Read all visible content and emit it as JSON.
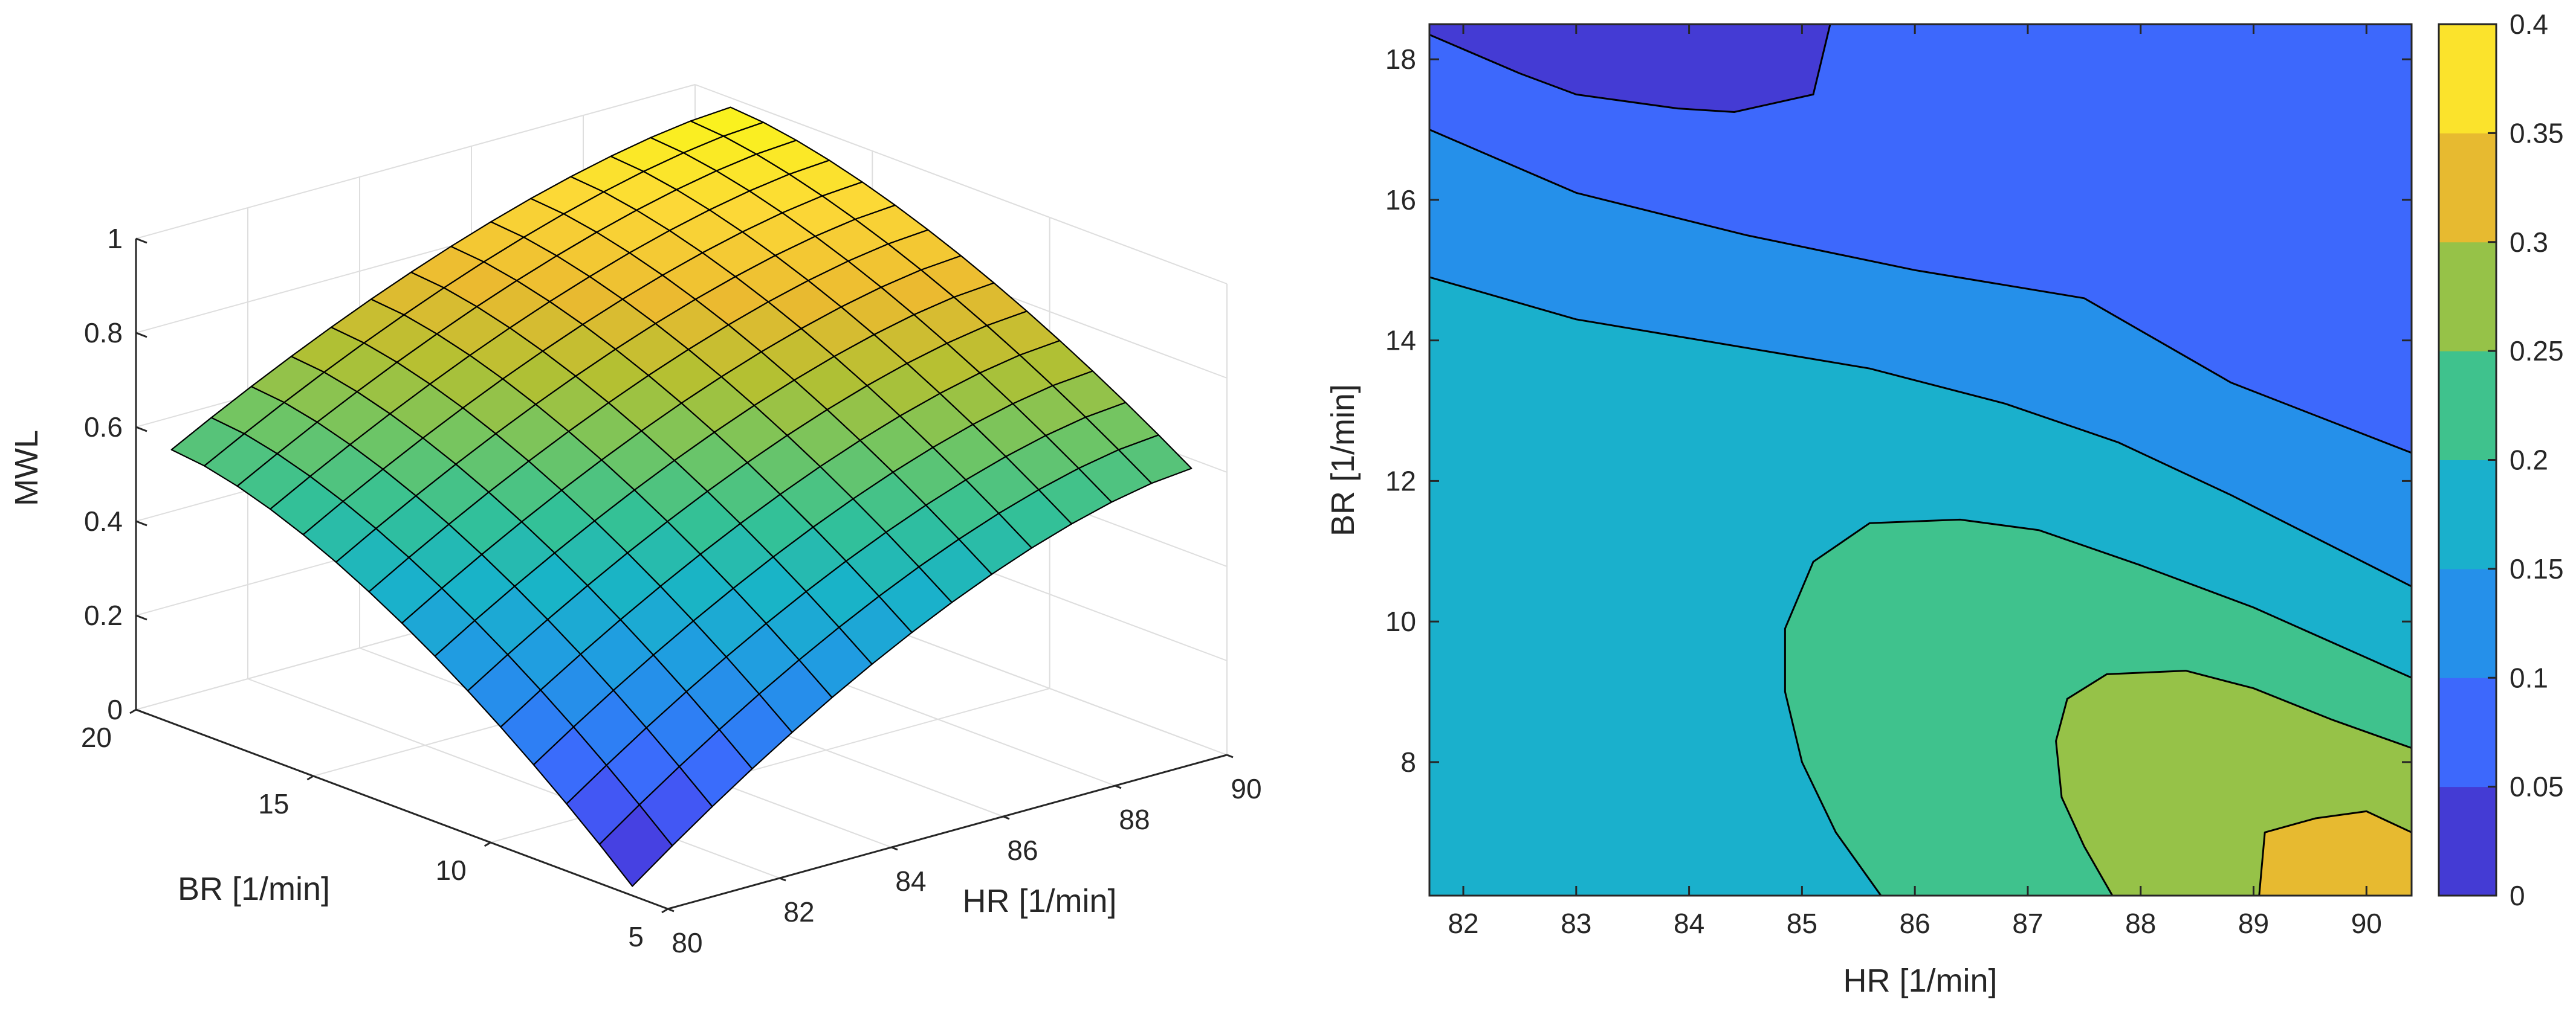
{
  "colors": {
    "axis": "#262626",
    "grid": "#dedede",
    "edge": "#000000",
    "background": "#ffffff"
  },
  "colormap": [
    "#3e26a8",
    "#4744e8",
    "#3e66fd",
    "#2a85f2",
    "#1f9fdf",
    "#19b4c7",
    "#34c196",
    "#70c564",
    "#b3c032",
    "#ebba30",
    "#fcd837",
    "#f9fb15"
  ],
  "chart_data": [
    {
      "type": "surface",
      "xlabel": "HR [1/min]",
      "ylabel": "BR [1/min]",
      "zlabel": "MWL",
      "xlim": [
        80,
        90
      ],
      "ylim": [
        5,
        20
      ],
      "zlim": [
        0,
        1
      ],
      "xticks": [
        "80",
        "82",
        "84",
        "86",
        "88",
        "90"
      ],
      "yticks": [
        "5",
        "10",
        "15",
        "20"
      ],
      "zticks": [
        "0",
        "0.2",
        "0.4",
        "0.6",
        "0.8",
        "1"
      ],
      "hr_range": [
        80,
        90
      ],
      "br_range": [
        6,
        19
      ],
      "grid_size": [
        15,
        15
      ],
      "corner_values": {
        "hr80_br6": 0.02,
        "hr90_br6": 0.58,
        "hr80_br19": 0.58,
        "hr90_br19": 0.98
      }
    },
    {
      "type": "contour",
      "xlabel": "HR [1/min]",
      "ylabel": "BR [1/min]",
      "xlim": [
        81.7,
        90.4
      ],
      "ylim": [
        6.1,
        18.5
      ],
      "xticks": [
        "82",
        "83",
        "84",
        "85",
        "86",
        "87",
        "88",
        "89",
        "90"
      ],
      "yticks": [
        "8",
        "10",
        "12",
        "14",
        "16",
        "18"
      ],
      "colorbar": {
        "clim": [
          0,
          0.4
        ],
        "ticks": [
          "0",
          "0.05",
          "0.1",
          "0.15",
          "0.2",
          "0.25",
          "0.3",
          "0.35",
          "0.4"
        ]
      },
      "levels": [
        0,
        0.05,
        0.1,
        0.15,
        0.2,
        0.25,
        0.3,
        0.35,
        0.4
      ],
      "contour_lines": [
        {
          "level": 0.05,
          "points": [
            [
              84.4,
              17.25
            ],
            [
              83.9,
              17.3
            ],
            [
              83.0,
              17.5
            ],
            [
              82.5,
              17.8
            ],
            [
              81.7,
              18.35
            ]
          ],
          "closed_to": [
            [
              85.1,
              17.5
            ],
            [
              85.25,
              18.5
            ]
          ]
        },
        {
          "level": 0.1,
          "points": [
            [
              81.7,
              17.0
            ],
            [
              83.0,
              16.1
            ],
            [
              84.5,
              15.5
            ],
            [
              86.0,
              15.0
            ],
            [
              87.5,
              14.6
            ],
            [
              88.8,
              13.4
            ],
            [
              90.4,
              12.4
            ]
          ]
        },
        {
          "level": 0.15,
          "points": [
            [
              81.7,
              14.9
            ],
            [
              83.0,
              14.3
            ],
            [
              84.3,
              13.95
            ],
            [
              85.6,
              13.6
            ],
            [
              86.8,
              13.1
            ],
            [
              87.8,
              12.55
            ],
            [
              88.8,
              11.8
            ],
            [
              90.4,
              10.5
            ]
          ]
        },
        {
          "level": 0.2,
          "points": [
            [
              85.7,
              6.1
            ],
            [
              85.3,
              7.0
            ],
            [
              85.0,
              8.0
            ],
            [
              84.85,
              9.0
            ],
            [
              84.85,
              9.9
            ],
            [
              85.1,
              10.85
            ],
            [
              85.6,
              11.4
            ],
            [
              86.4,
              11.45
            ],
            [
              87.1,
              11.3
            ],
            [
              88.0,
              10.8
            ],
            [
              89.0,
              10.2
            ],
            [
              90.4,
              9.2
            ]
          ]
        },
        {
          "level": 0.25,
          "points": [
            [
              87.75,
              6.1
            ],
            [
              87.5,
              6.8
            ],
            [
              87.3,
              7.5
            ],
            [
              87.25,
              8.3
            ],
            [
              87.35,
              8.9
            ],
            [
              87.7,
              9.25
            ],
            [
              88.4,
              9.3
            ],
            [
              89.0,
              9.05
            ],
            [
              89.7,
              8.6
            ],
            [
              90.4,
              8.2
            ]
          ]
        },
        {
          "level": 0.3,
          "points": [
            [
              89.05,
              6.1
            ],
            [
              89.1,
              7.0
            ],
            [
              89.55,
              7.2
            ],
            [
              90.0,
              7.3
            ],
            [
              90.4,
              7.0
            ]
          ]
        }
      ]
    }
  ]
}
